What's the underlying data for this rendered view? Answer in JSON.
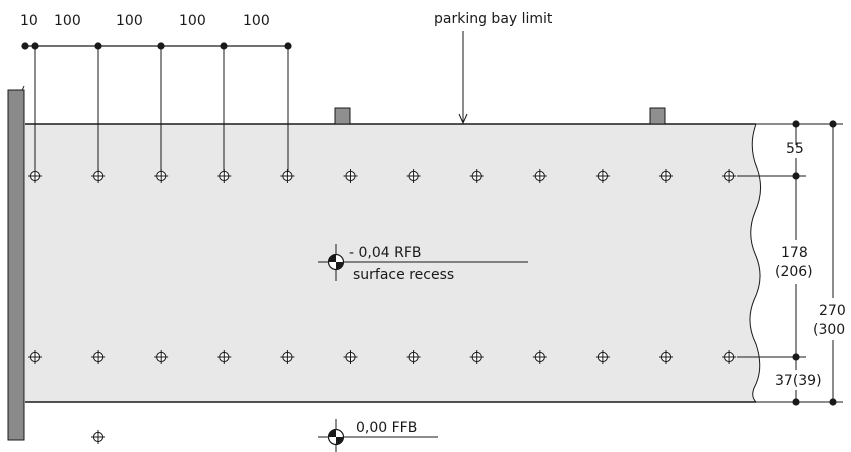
{
  "top_dimensions": [
    "10",
    "100",
    "100",
    "100",
    "100"
  ],
  "annotations": {
    "parking_bay_limit": "parking bay limit",
    "recess_level": "- 0,04 RFB",
    "recess_label": "surface recess",
    "floor_level": "0,00 FFB"
  },
  "right_dimensions": {
    "top_offset": "55",
    "middle_span": "178",
    "middle_span_alt": "(206)",
    "bottom_offset": "37(39)",
    "total": "270",
    "total_alt": "(300"
  },
  "anchor_rows": {
    "top_row_count": 12,
    "bottom_row_count": 12,
    "loose_anchor_count": 1
  },
  "colors": {
    "slab_fill": "#e8e8e8",
    "wall_fill": "#8a8a8a",
    "post_fill": "#8f8f8f",
    "line": "#1a1a1a"
  }
}
